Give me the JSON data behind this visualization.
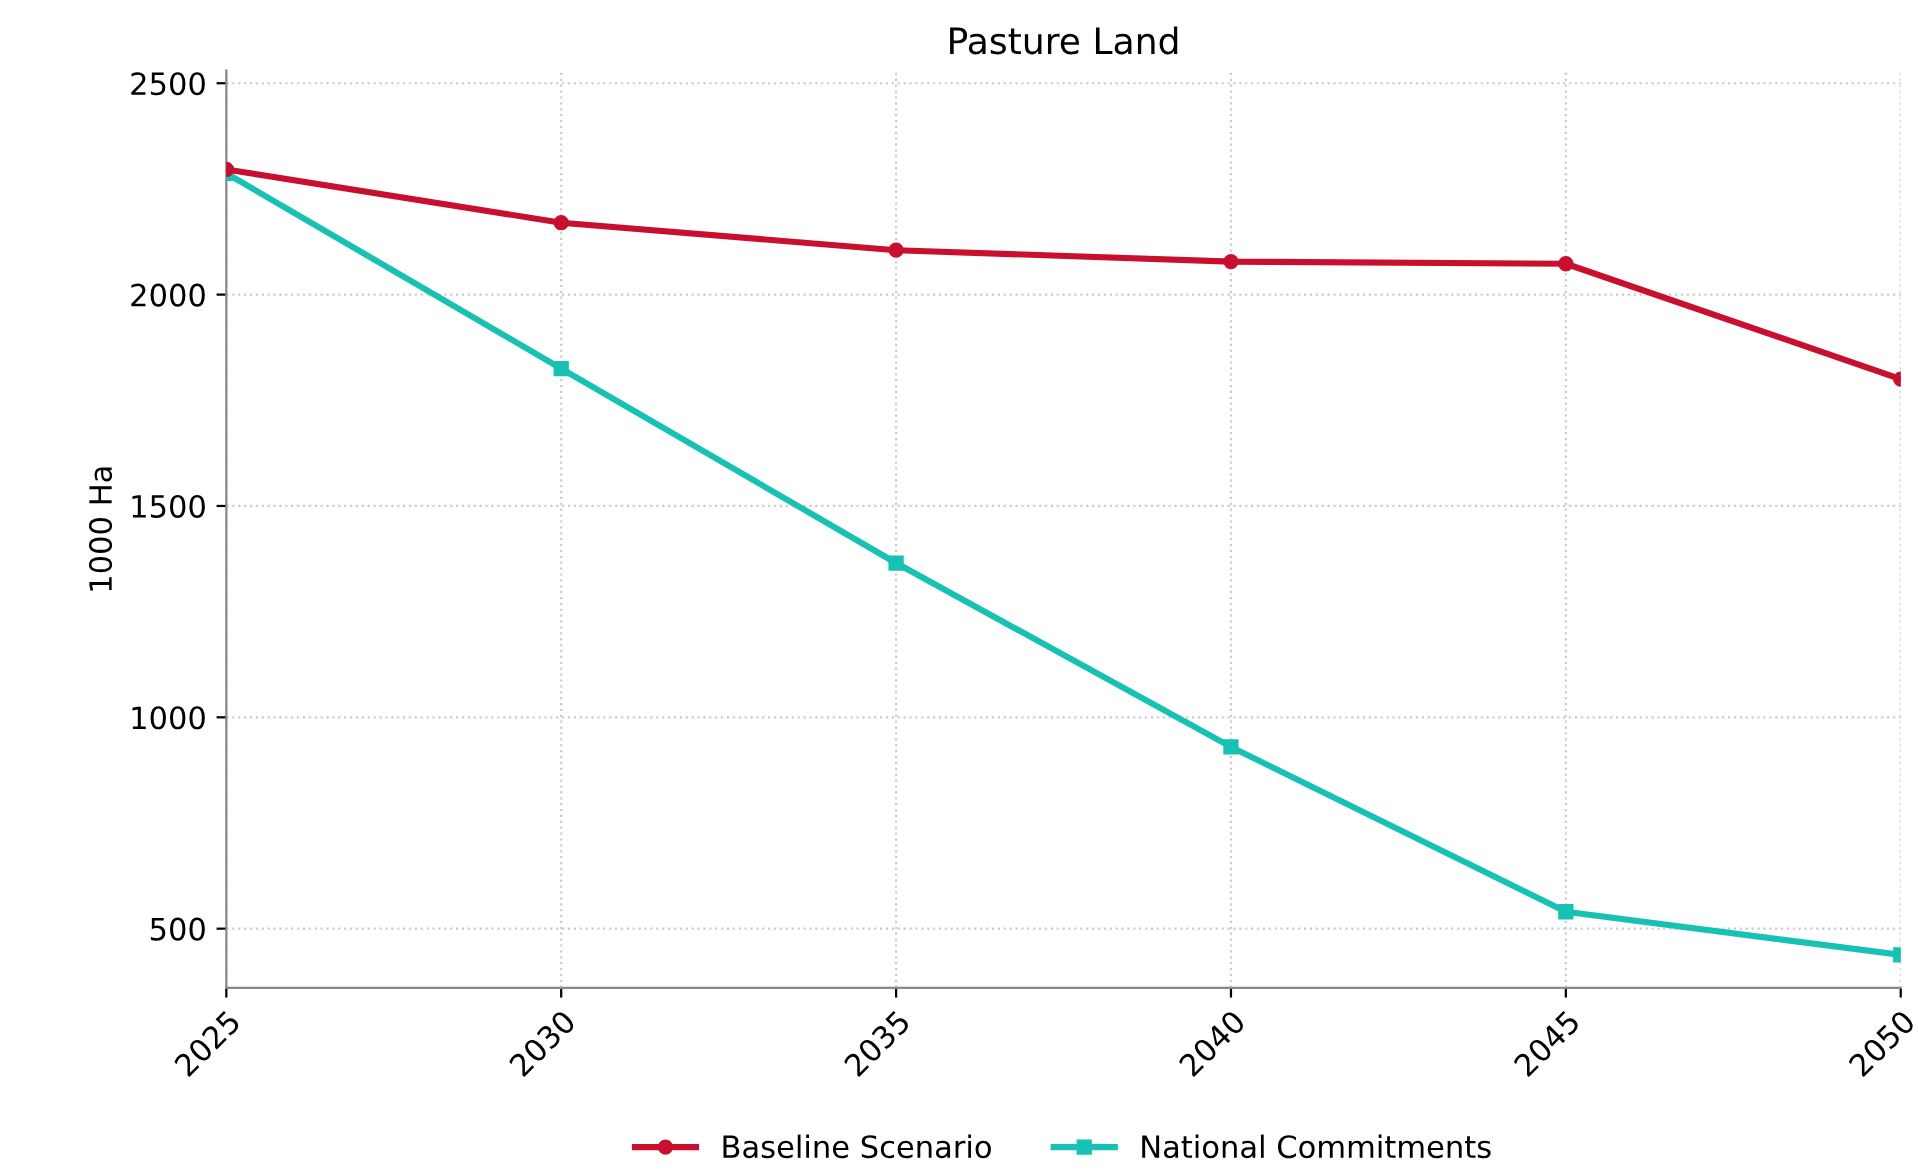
{
  "chart_data": {
    "type": "line",
    "title": "Pasture Land",
    "ylabel": "1000 Ha",
    "x": [
      2025,
      2030,
      2035,
      2040,
      2045,
      2050
    ],
    "series": [
      {
        "name": "Baseline Scenario",
        "color": "#c8102e",
        "marker": "circle",
        "values": [
          2296,
          2170,
          2105,
          2078,
          2073,
          1800
        ]
      },
      {
        "name": "National Commitments",
        "color": "#17c1b4",
        "marker": "square",
        "values": [
          2287,
          1825,
          1365,
          930,
          540,
          438
        ]
      }
    ],
    "xlim": [
      2025,
      2050
    ],
    "xticks": [
      2025,
      2030,
      2035,
      2040,
      2045,
      2050
    ],
    "ylim": [
      360,
      2530
    ],
    "yticks": [
      500,
      1000,
      1500,
      2000,
      2500
    ],
    "grid": true,
    "legend": "bottom",
    "line_style": "solid"
  }
}
